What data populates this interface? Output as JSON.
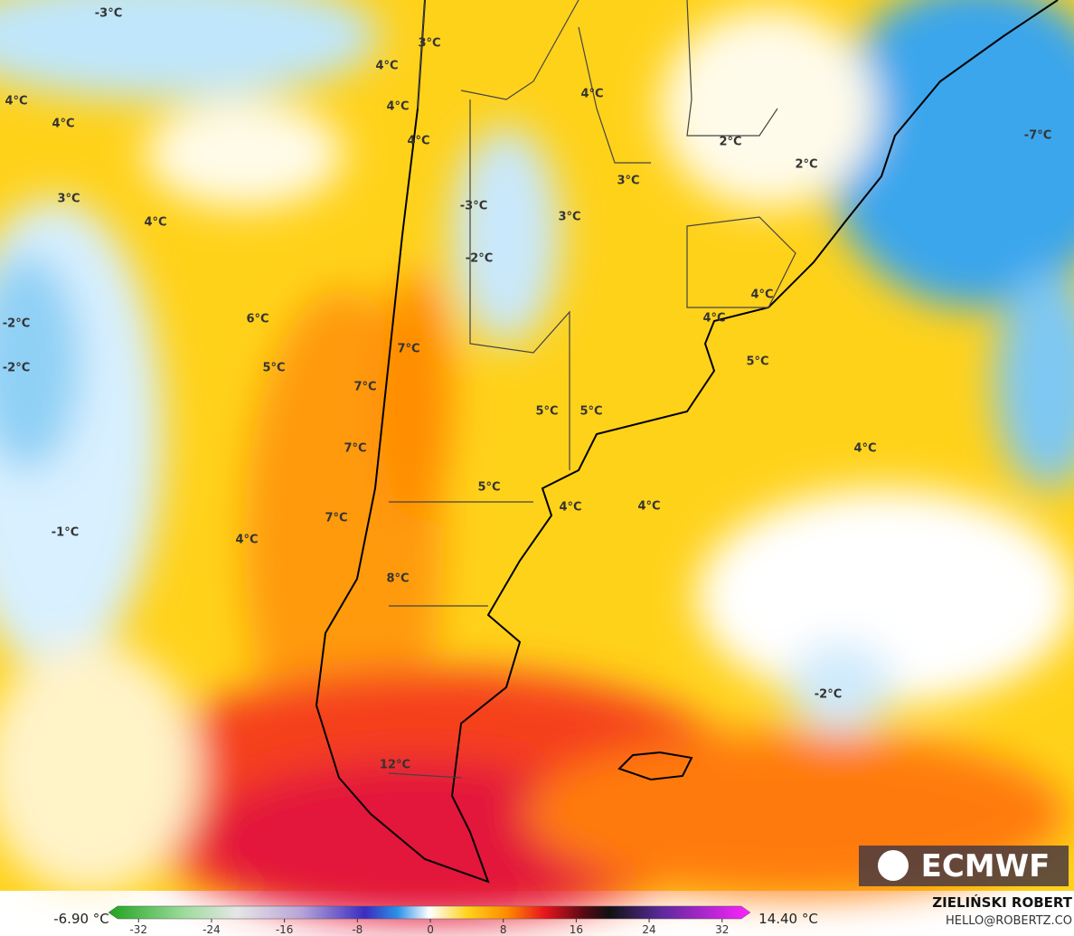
{
  "map": {
    "labels": [
      "-3°C",
      "3°C",
      "4°C",
      "4°C",
      "4°C",
      "4°C",
      "4°C",
      "4°C",
      "2°C",
      "2°C",
      "-7°C",
      "3°C",
      "3°C",
      "-3°C",
      "3°C",
      "4°C",
      "-2°C",
      "-2°C",
      "6°C",
      "4°C",
      "4°C",
      "-2°C",
      "7°C",
      "5°C",
      "5°C",
      "7°C",
      "5°C",
      "5°C",
      "7°C",
      "4°C",
      "5°C",
      "4°C",
      "4°C",
      "7°C",
      "-1°C",
      "4°C",
      "8°C",
      "-2°C",
      "12°C"
    ],
    "logo": "ECMWF"
  },
  "colorbar": {
    "min_label": "-6.90 °C",
    "max_label": "14.40 °C",
    "lim": [
      -35.3,
      35.1
    ],
    "ticks": [
      -32,
      -24,
      -16,
      -8,
      0,
      8,
      16,
      24,
      32
    ]
  },
  "credit": {
    "author": "ZIELIŃSKI ROBERT",
    "contact": "HELLO@ROBERTZ.CO"
  }
}
